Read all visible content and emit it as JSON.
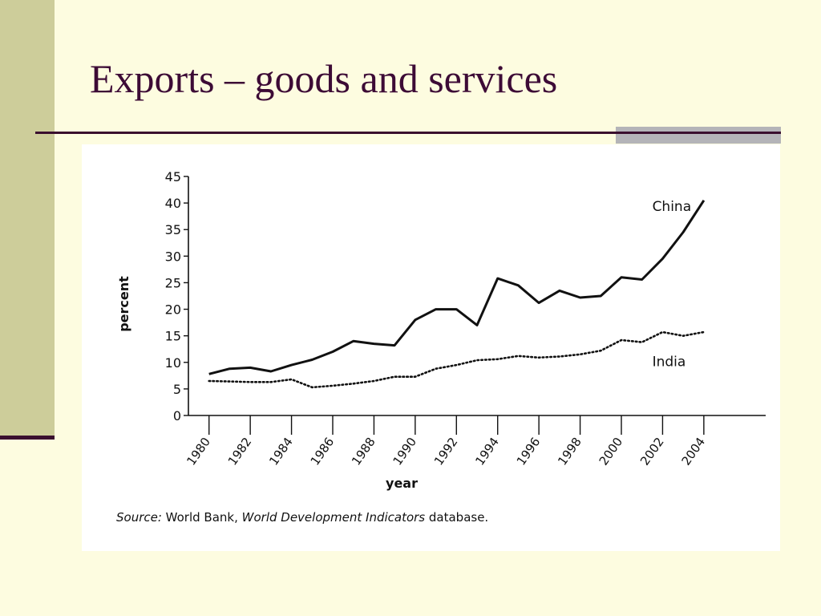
{
  "slide": {
    "title": "Exports – goods and services",
    "source_label": "Source:",
    "source_org": " World Bank, ",
    "source_db": "World Development Indicators",
    "source_tail": " database."
  },
  "colors": {
    "background": "#fdfce0",
    "sidebar": "#cdcd9a",
    "title": "#3d0b36",
    "rule": "#3a0f2e",
    "accent": "#b4b4b8"
  },
  "chart_data": {
    "type": "line",
    "title": "",
    "xlabel": "year",
    "ylabel": "percent",
    "xlim": [
      1979,
      2007
    ],
    "ylim": [
      0,
      45
    ],
    "x_ticks": [
      1980,
      1982,
      1984,
      1986,
      1988,
      1990,
      1992,
      1994,
      1996,
      1998,
      2000,
      2002,
      2004
    ],
    "y_ticks": [
      0,
      5,
      10,
      15,
      20,
      25,
      30,
      35,
      40,
      45
    ],
    "grid": false,
    "legend": "inline labels next to lines",
    "series": [
      {
        "name": "China",
        "style": "solid",
        "x": [
          1980,
          1981,
          1982,
          1983,
          1984,
          1985,
          1986,
          1987,
          1988,
          1989,
          1990,
          1991,
          1992,
          1993,
          1994,
          1995,
          1996,
          1997,
          1998,
          1999,
          2000,
          2001,
          2002,
          2003,
          2004
        ],
        "values": [
          7.8,
          8.8,
          9.0,
          8.3,
          9.5,
          10.5,
          12.0,
          14.0,
          13.5,
          13.2,
          18.0,
          20.0,
          20.0,
          17.0,
          25.8,
          24.5,
          21.2,
          23.5,
          22.2,
          22.5,
          26.0,
          25.6,
          29.5,
          34.5,
          40.5
        ]
      },
      {
        "name": "India",
        "style": "dotted",
        "x": [
          1980,
          1981,
          1982,
          1983,
          1984,
          1985,
          1986,
          1987,
          1988,
          1989,
          1990,
          1991,
          1992,
          1993,
          1994,
          1995,
          1996,
          1997,
          1998,
          1999,
          2000,
          2001,
          2002,
          2003,
          2004
        ],
        "values": [
          6.5,
          6.4,
          6.3,
          6.3,
          6.8,
          5.3,
          5.6,
          6.0,
          6.5,
          7.3,
          7.3,
          8.8,
          9.5,
          10.4,
          10.6,
          11.2,
          10.9,
          11.1,
          11.5,
          12.2,
          14.2,
          13.8,
          15.7,
          15.0,
          15.7
        ]
      }
    ]
  }
}
